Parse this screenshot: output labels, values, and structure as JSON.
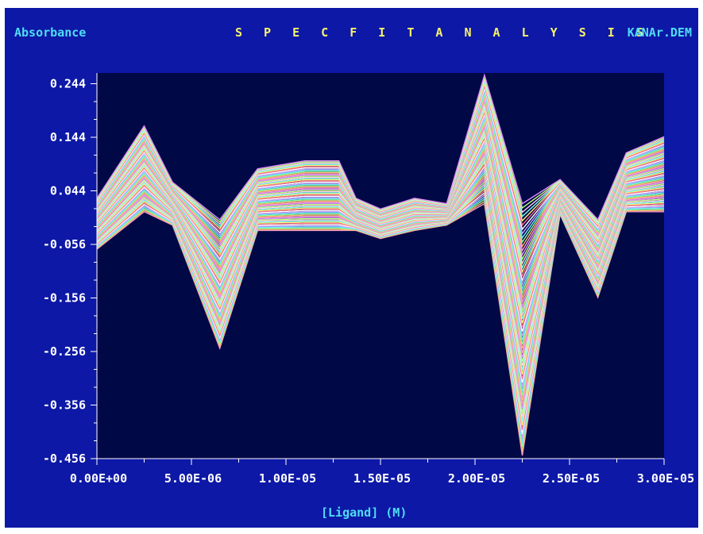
{
  "header": {
    "left_label": "Absorbance",
    "title": "S P E C F I T   A N A L Y S I S",
    "file_name": "KANAr.DEM"
  },
  "colors": {
    "background": "#0d18a6",
    "plot_area": "#010846",
    "axis": "#ffffff",
    "label_cyan": "#4fdcf5",
    "title_yellow": "#f7f36a",
    "palette": [
      "#ff9ec8",
      "#ffb56b",
      "#8cff9a",
      "#6fe3ff",
      "#c9a3ff",
      "#ffffff",
      "#ff6f8a",
      "#fff27a",
      "#7afff0",
      "#ffd1e8",
      "#b8ff7a",
      "#e08cff"
    ]
  },
  "chart_data": {
    "type": "line",
    "xlabel": "[Ligand] (M)",
    "ylabel": "Absorbance",
    "xlim": [
      0,
      3e-05
    ],
    "ylim": [
      -0.456,
      0.264
    ],
    "x_ticks": [
      0,
      5e-06,
      1e-05,
      1.5e-05,
      2e-05,
      2.5e-05,
      3e-05
    ],
    "x_tick_labels": [
      "0.00E+00",
      "5.00E-06",
      "1.00E-05",
      "1.50E-05",
      "2.00E-05",
      "2.50E-05",
      "3.00E-05"
    ],
    "y_ticks": [
      0.244,
      0.144,
      0.044,
      -0.056,
      -0.156,
      -0.256,
      -0.356,
      -0.456
    ],
    "y_tick_labels": [
      "0.244",
      "0.144",
      "0.044",
      "-0.056",
      "-0.156",
      "-0.256",
      "-0.356",
      "-0.456"
    ],
    "grid": false,
    "series_count": 60,
    "x": [
      0,
      2.5e-06,
      4e-06,
      6.5e-06,
      8.5e-06,
      1.1e-05,
      1.28e-05,
      1.37e-05,
      1.5e-05,
      1.68e-05,
      1.85e-05,
      2.05e-05,
      2.25e-05,
      2.45e-05,
      2.65e-05,
      2.8e-05,
      3e-05
    ],
    "envelope_upper": [
      0.03,
      0.165,
      0.06,
      -0.01,
      0.085,
      0.1,
      0.1,
      0.03,
      0.01,
      0.03,
      0.02,
      0.26,
      0.02,
      0.065,
      -0.01,
      0.115,
      0.145
    ],
    "envelope_lower": [
      -0.065,
      0.005,
      -0.02,
      -0.25,
      -0.03,
      -0.03,
      -0.03,
      -0.03,
      -0.045,
      -0.03,
      -0.02,
      0.02,
      -0.45,
      0.0,
      -0.155,
      0.005,
      0.005
    ]
  }
}
